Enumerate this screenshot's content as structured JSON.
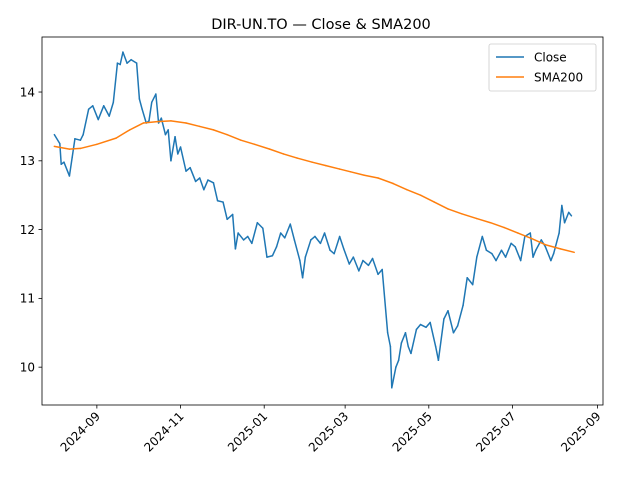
{
  "chart_data": {
    "type": "line",
    "title": "DIR-UN.TO — Close & SMA200",
    "xlabel": "",
    "ylabel": "",
    "x_ticks": [
      "2024-09",
      "2024-11",
      "2025-01",
      "2025-03",
      "2025-05",
      "2025-07",
      "2025-09"
    ],
    "y_ticks": [
      10,
      11,
      12,
      13,
      14
    ],
    "ylim": [
      9.45,
      14.8
    ],
    "xlim": [
      "2024-07-23",
      "2025-09-05"
    ],
    "grid": false,
    "legend_position": "top-right",
    "series": [
      {
        "name": "Close",
        "color": "#1f77b4",
        "points": [
          [
            "2024-08-01",
            13.38
          ],
          [
            "2024-08-05",
            13.25
          ],
          [
            "2024-08-06",
            12.95
          ],
          [
            "2024-08-08",
            12.98
          ],
          [
            "2024-08-12",
            12.78
          ],
          [
            "2024-08-14",
            13.05
          ],
          [
            "2024-08-16",
            13.32
          ],
          [
            "2024-08-20",
            13.3
          ],
          [
            "2024-08-22",
            13.38
          ],
          [
            "2024-08-26",
            13.75
          ],
          [
            "2024-08-29",
            13.8
          ],
          [
            "2024-09-02",
            13.6
          ],
          [
            "2024-09-06",
            13.8
          ],
          [
            "2024-09-10",
            13.65
          ],
          [
            "2024-09-13",
            13.85
          ],
          [
            "2024-09-16",
            14.42
          ],
          [
            "2024-09-18",
            14.4
          ],
          [
            "2024-09-20",
            14.58
          ],
          [
            "2024-09-23",
            14.42
          ],
          [
            "2024-09-26",
            14.47
          ],
          [
            "2024-09-30",
            14.42
          ],
          [
            "2024-10-02",
            13.9
          ],
          [
            "2024-10-04",
            13.75
          ],
          [
            "2024-10-07",
            13.55
          ],
          [
            "2024-10-09",
            13.58
          ],
          [
            "2024-10-11",
            13.85
          ],
          [
            "2024-10-14",
            13.97
          ],
          [
            "2024-10-16",
            13.55
          ],
          [
            "2024-10-18",
            13.62
          ],
          [
            "2024-10-21",
            13.38
          ],
          [
            "2024-10-23",
            13.45
          ],
          [
            "2024-10-25",
            13.0
          ],
          [
            "2024-10-28",
            13.35
          ],
          [
            "2024-10-30",
            13.1
          ],
          [
            "2024-11-01",
            13.2
          ],
          [
            "2024-11-05",
            12.85
          ],
          [
            "2024-11-08",
            12.9
          ],
          [
            "2024-11-12",
            12.7
          ],
          [
            "2024-11-15",
            12.75
          ],
          [
            "2024-11-18",
            12.58
          ],
          [
            "2024-11-21",
            12.72
          ],
          [
            "2024-11-25",
            12.68
          ],
          [
            "2024-11-28",
            12.42
          ],
          [
            "2024-12-02",
            12.4
          ],
          [
            "2024-12-05",
            12.15
          ],
          [
            "2024-12-09",
            12.22
          ],
          [
            "2024-12-11",
            11.72
          ],
          [
            "2024-12-13",
            11.95
          ],
          [
            "2024-12-17",
            11.85
          ],
          [
            "2024-12-20",
            11.9
          ],
          [
            "2024-12-23",
            11.8
          ],
          [
            "2024-12-27",
            12.1
          ],
          [
            "2024-12-31",
            12.02
          ],
          [
            "2025-01-03",
            11.6
          ],
          [
            "2025-01-07",
            11.62
          ],
          [
            "2025-01-10",
            11.75
          ],
          [
            "2025-01-13",
            11.95
          ],
          [
            "2025-01-16",
            11.88
          ],
          [
            "2025-01-20",
            12.08
          ],
          [
            "2025-01-23",
            11.85
          ],
          [
            "2025-01-27",
            11.55
          ],
          [
            "2025-01-29",
            11.3
          ],
          [
            "2025-01-31",
            11.6
          ],
          [
            "2025-02-04",
            11.85
          ],
          [
            "2025-02-07",
            11.9
          ],
          [
            "2025-02-11",
            11.8
          ],
          [
            "2025-02-14",
            11.95
          ],
          [
            "2025-02-18",
            11.7
          ],
          [
            "2025-02-21",
            11.65
          ],
          [
            "2025-02-25",
            11.9
          ],
          [
            "2025-02-28",
            11.72
          ],
          [
            "2025-03-04",
            11.5
          ],
          [
            "2025-03-07",
            11.6
          ],
          [
            "2025-03-11",
            11.4
          ],
          [
            "2025-03-14",
            11.55
          ],
          [
            "2025-03-18",
            11.48
          ],
          [
            "2025-03-21",
            11.58
          ],
          [
            "2025-03-25",
            11.35
          ],
          [
            "2025-03-28",
            11.42
          ],
          [
            "2025-04-01",
            10.5
          ],
          [
            "2025-04-03",
            10.3
          ],
          [
            "2025-04-04",
            9.7
          ],
          [
            "2025-04-07",
            10.0
          ],
          [
            "2025-04-09",
            10.1
          ],
          [
            "2025-04-11",
            10.35
          ],
          [
            "2025-04-14",
            10.5
          ],
          [
            "2025-04-16",
            10.3
          ],
          [
            "2025-04-18",
            10.2
          ],
          [
            "2025-04-22",
            10.55
          ],
          [
            "2025-04-25",
            10.62
          ],
          [
            "2025-04-29",
            10.58
          ],
          [
            "2025-05-02",
            10.65
          ],
          [
            "2025-05-06",
            10.3
          ],
          [
            "2025-05-08",
            10.1
          ],
          [
            "2025-05-12",
            10.7
          ],
          [
            "2025-05-15",
            10.82
          ],
          [
            "2025-05-19",
            10.5
          ],
          [
            "2025-05-22",
            10.6
          ],
          [
            "2025-05-26",
            10.9
          ],
          [
            "2025-05-29",
            11.3
          ],
          [
            "2025-06-02",
            11.2
          ],
          [
            "2025-06-05",
            11.6
          ],
          [
            "2025-06-09",
            11.9
          ],
          [
            "2025-06-12",
            11.7
          ],
          [
            "2025-06-16",
            11.65
          ],
          [
            "2025-06-19",
            11.55
          ],
          [
            "2025-06-23",
            11.7
          ],
          [
            "2025-06-26",
            11.6
          ],
          [
            "2025-06-30",
            11.8
          ],
          [
            "2025-07-03",
            11.75
          ],
          [
            "2025-07-07",
            11.55
          ],
          [
            "2025-07-10",
            11.9
          ],
          [
            "2025-07-14",
            11.95
          ],
          [
            "2025-07-16",
            11.6
          ],
          [
            "2025-07-18",
            11.7
          ],
          [
            "2025-07-22",
            11.85
          ],
          [
            "2025-07-25",
            11.75
          ],
          [
            "2025-07-29",
            11.55
          ],
          [
            "2025-07-31",
            11.65
          ],
          [
            "2025-08-04",
            11.95
          ],
          [
            "2025-08-06",
            12.35
          ],
          [
            "2025-08-08",
            12.1
          ],
          [
            "2025-08-11",
            12.25
          ],
          [
            "2025-08-13",
            12.2
          ]
        ]
      },
      {
        "name": "SMA200",
        "color": "#ff7f0e",
        "points": [
          [
            "2024-08-01",
            13.21
          ],
          [
            "2024-08-12",
            13.17
          ],
          [
            "2024-08-20",
            13.18
          ],
          [
            "2024-09-01",
            13.24
          ],
          [
            "2024-09-15",
            13.33
          ],
          [
            "2024-09-25",
            13.45
          ],
          [
            "2024-10-05",
            13.55
          ],
          [
            "2024-10-15",
            13.57
          ],
          [
            "2024-10-25",
            13.58
          ],
          [
            "2024-11-05",
            13.55
          ],
          [
            "2024-11-15",
            13.5
          ],
          [
            "2024-11-25",
            13.45
          ],
          [
            "2024-12-05",
            13.38
          ],
          [
            "2024-12-15",
            13.3
          ],
          [
            "2024-12-25",
            13.24
          ],
          [
            "2025-01-05",
            13.17
          ],
          [
            "2025-01-15",
            13.1
          ],
          [
            "2025-01-25",
            13.04
          ],
          [
            "2025-02-05",
            12.98
          ],
          [
            "2025-02-15",
            12.93
          ],
          [
            "2025-02-25",
            12.88
          ],
          [
            "2025-03-05",
            12.84
          ],
          [
            "2025-03-15",
            12.79
          ],
          [
            "2025-03-25",
            12.75
          ],
          [
            "2025-04-05",
            12.67
          ],
          [
            "2025-04-15",
            12.58
          ],
          [
            "2025-04-25",
            12.5
          ],
          [
            "2025-05-05",
            12.4
          ],
          [
            "2025-05-15",
            12.3
          ],
          [
            "2025-05-25",
            12.23
          ],
          [
            "2025-06-05",
            12.16
          ],
          [
            "2025-06-15",
            12.1
          ],
          [
            "2025-06-25",
            12.03
          ],
          [
            "2025-07-05",
            11.95
          ],
          [
            "2025-07-15",
            11.87
          ],
          [
            "2025-07-25",
            11.78
          ],
          [
            "2025-08-05",
            11.72
          ],
          [
            "2025-08-15",
            11.67
          ]
        ]
      }
    ]
  }
}
